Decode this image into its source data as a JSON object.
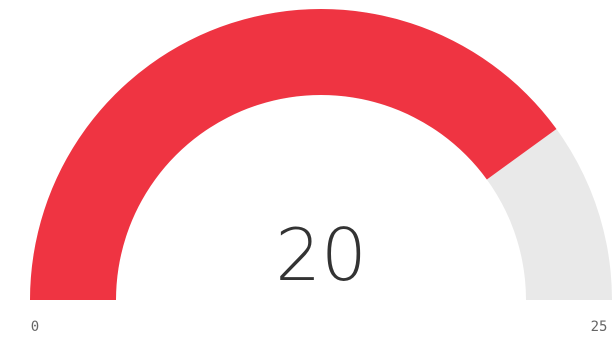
{
  "chart_data": {
    "type": "gauge",
    "value": 20,
    "value_label": "20",
    "min": 0,
    "max": 25,
    "min_label": "0",
    "max_label": "25",
    "colors": {
      "fill": "#ef3442",
      "track": "#e9e9e9",
      "value_text": "#333333",
      "tick_text": "#666666"
    }
  }
}
